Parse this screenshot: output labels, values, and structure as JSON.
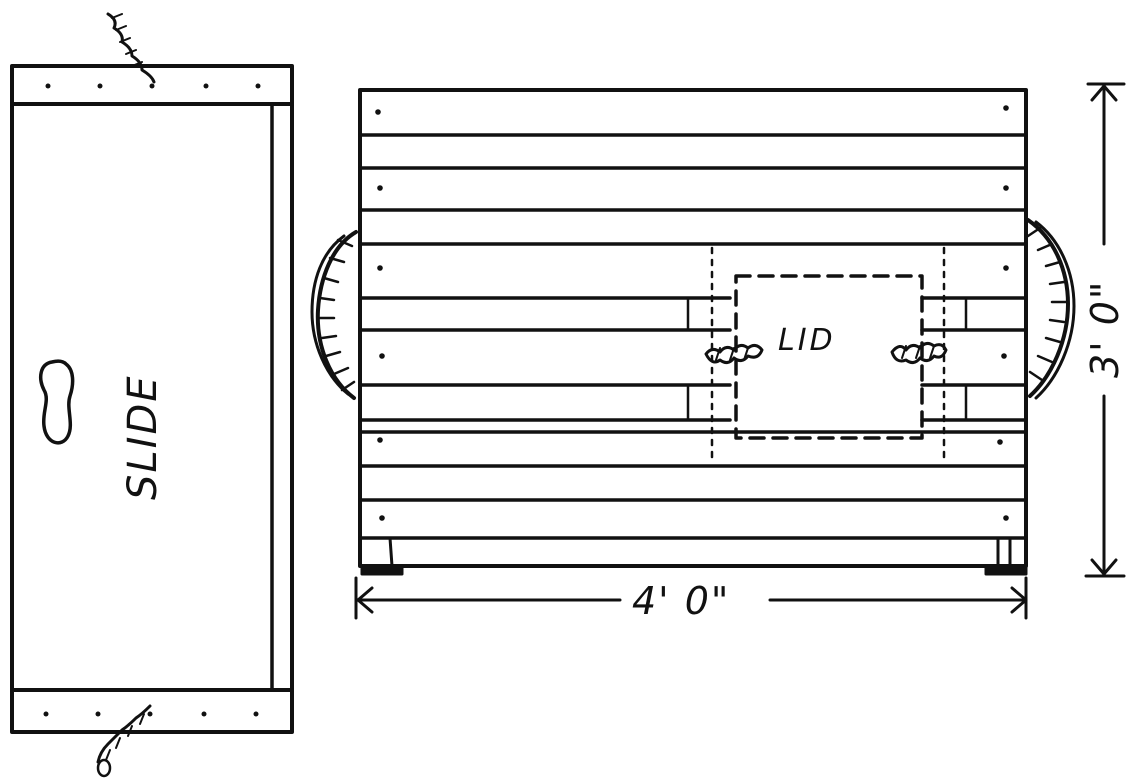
{
  "diagram": {
    "labels": {
      "slide": "SLIDE",
      "lid": "LID",
      "width_dimension": "4' 0\"",
      "height_dimension": "3' 0\""
    }
  }
}
